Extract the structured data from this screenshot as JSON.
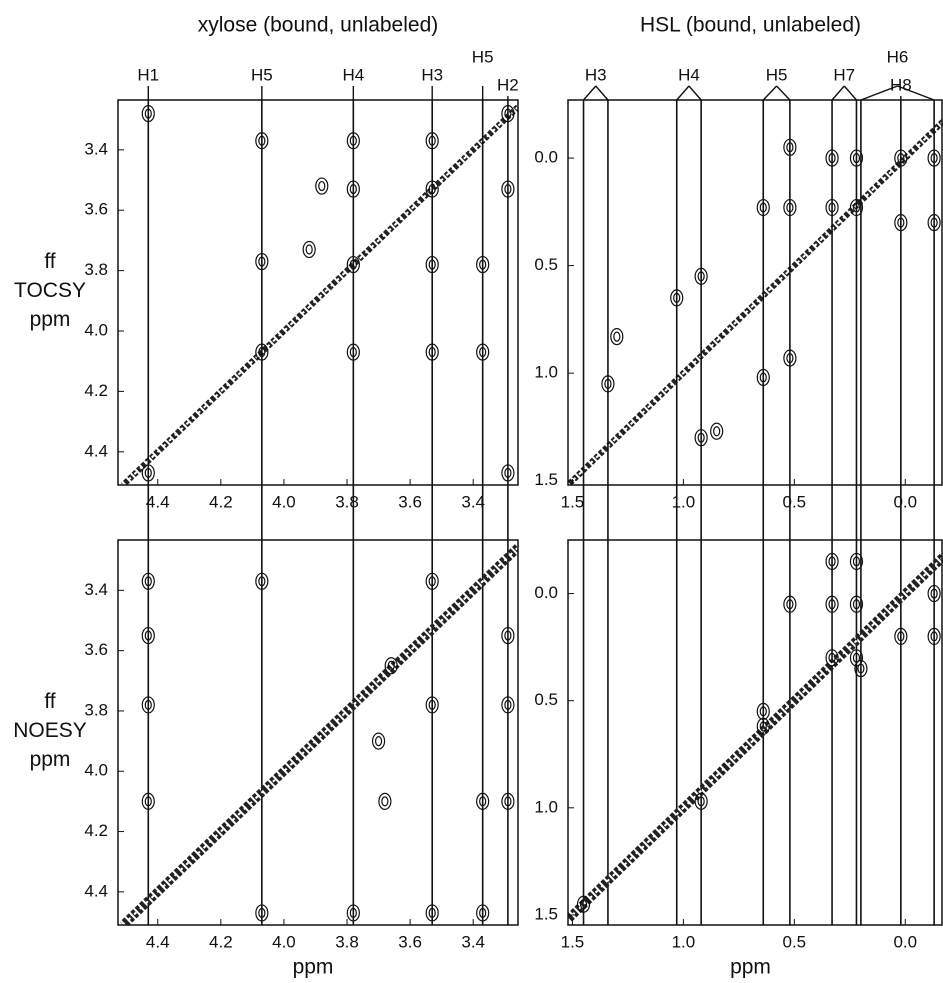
{
  "chart_data": [
    {
      "type": "scatter",
      "title": "xylose (bound, unlabeled)",
      "ylabel": [
        "ff",
        "TOCSY",
        "ppm"
      ],
      "xlim": [
        4.526,
        3.258
      ],
      "ylim": [
        4.51,
        3.235
      ],
      "xticks": [
        4.4,
        4.2,
        {
          "value": 4,
          "label": "4.0"
        },
        3.8,
        3.6,
        3.4
      ],
      "yticks": [
        3.4,
        3.6,
        3.8,
        {
          "value": 4,
          "label": "4.0"
        },
        4.2,
        4.4
      ],
      "markers": [
        {
          "label": "H1",
          "x": [
            4.43
          ]
        },
        {
          "label": "H5",
          "x": [
            4.07
          ]
        },
        {
          "label": "H4",
          "x": [
            3.78
          ]
        },
        {
          "label": "H3",
          "x": [
            3.53
          ]
        },
        {
          "label": "H5",
          "x": [
            3.37
          ]
        },
        {
          "label": "H2",
          "x": [
            3.29
          ]
        }
      ],
      "x": [
        4.43,
        4.43,
        4.07,
        4.07,
        4.07,
        3.78,
        3.78,
        3.78,
        3.78,
        3.53,
        3.53,
        3.53,
        3.53,
        3.37,
        3.37,
        3.29,
        3.29,
        3.29,
        3.88,
        3.92
      ],
      "y": [
        3.28,
        4.47,
        3.37,
        3.77,
        4.07,
        3.37,
        3.53,
        3.78,
        4.07,
        3.37,
        3.78,
        4.07,
        3.53,
        3.78,
        4.07,
        3.28,
        3.53,
        4.47,
        3.52,
        3.73
      ]
    },
    {
      "type": "scatter",
      "title": "HSL (bound, unlabeled)",
      "xlim": [
        1.52,
        -0.17
      ],
      "ylim": [
        1.52,
        -0.27
      ],
      "xticks": [
        1.5,
        {
          "value": 1,
          "label": "1.0"
        },
        0.5,
        {
          "value": 0,
          "label": "0.0"
        }
      ],
      "yticks": [
        {
          "value": 0,
          "label": "0.0"
        },
        0.5,
        {
          "value": 1,
          "label": "1.0"
        },
        1.5
      ],
      "markers": [
        {
          "label": "H3",
          "x": [
            1.45,
            1.34
          ]
        },
        {
          "label": "H4",
          "x": [
            1.03,
            0.92
          ]
        },
        {
          "label": "H5",
          "x": [
            0.64,
            0.52
          ]
        },
        {
          "label": "H7",
          "x": [
            0.33,
            0.22
          ]
        },
        {
          "label": "H6",
          "x": [
            0.2,
            -0.13
          ]
        },
        {
          "label": "H8",
          "x": [
            0.02
          ]
        }
      ],
      "x": [
        0.52,
        0.52,
        0.64,
        0.33,
        0.22,
        0.33,
        0.22,
        0.02,
        0.02,
        -0.13,
        -0.13,
        0.92,
        1.3,
        0.85,
        1.03,
        0.64,
        0.52,
        1.34,
        0.92
      ],
      "y": [
        -0.05,
        0.23,
        0.23,
        0.0,
        0.0,
        0.23,
        0.23,
        0.0,
        0.3,
        0.0,
        0.3,
        0.55,
        0.83,
        1.27,
        0.65,
        1.02,
        0.93,
        1.05,
        1.3
      ]
    },
    {
      "type": "scatter",
      "ylabel": [
        "ff",
        "NOESY",
        "ppm"
      ],
      "xlabel": "ppm",
      "xlim": [
        4.526,
        3.258
      ],
      "ylim": [
        4.51,
        3.233
      ],
      "xticks": [
        4.4,
        4.2,
        {
          "value": 4,
          "label": "4.0"
        },
        3.8,
        3.6,
        3.4
      ],
      "yticks": [
        3.4,
        3.6,
        3.8,
        {
          "value": 4,
          "label": "4.0"
        },
        4.2,
        4.4
      ],
      "x": [
        4.43,
        4.43,
        4.43,
        4.43,
        4.07,
        4.07,
        3.78,
        3.53,
        3.53,
        3.53,
        3.37,
        3.37,
        3.29,
        3.29,
        3.29,
        3.7,
        3.68,
        3.66
      ],
      "y": [
        3.37,
        3.55,
        3.78,
        4.1,
        3.37,
        4.47,
        4.47,
        3.37,
        3.78,
        4.47,
        4.1,
        4.47,
        3.55,
        3.78,
        4.1,
        3.9,
        4.1,
        3.65
      ]
    },
    {
      "type": "scatter",
      "xlabel": "ppm",
      "xlim": [
        1.52,
        -0.17
      ],
      "ylim": [
        1.547,
        -0.25
      ],
      "xticks": [
        1.5,
        {
          "value": 1,
          "label": "1.0"
        },
        0.5,
        {
          "value": 0,
          "label": "0.0"
        }
      ],
      "yticks": [
        {
          "value": 0,
          "label": "0.0"
        },
        0.5,
        {
          "value": 1,
          "label": "1.0"
        },
        1.5
      ],
      "x": [
        0.33,
        0.22,
        0.33,
        0.22,
        0.33,
        0.22,
        0.02,
        -0.13,
        -0.13,
        0.52,
        0.64,
        0.64,
        0.92,
        1.45,
        0.2
      ],
      "y": [
        -0.15,
        -0.15,
        0.05,
        0.05,
        0.3,
        0.3,
        0.2,
        0.0,
        0.2,
        0.05,
        0.55,
        0.62,
        0.97,
        1.45,
        0.35
      ]
    }
  ]
}
